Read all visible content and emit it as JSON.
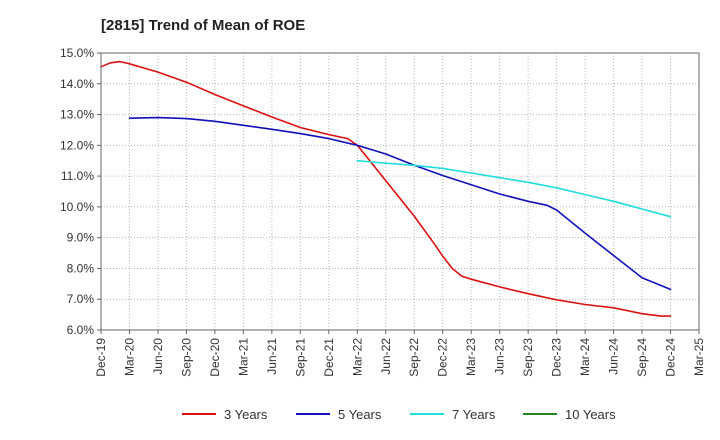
{
  "chart_data": {
    "type": "line",
    "title": "[2815]  Trend of Mean of ROE",
    "xlabel": "",
    "ylabel": "",
    "ylim": [
      6.0,
      15.0
    ],
    "y_ticks": [
      "6.0%",
      "7.0%",
      "8.0%",
      "9.0%",
      "10.0%",
      "11.0%",
      "12.0%",
      "13.0%",
      "14.0%",
      "15.0%"
    ],
    "x_ticks": [
      "Dec-19",
      "Mar-20",
      "Jun-20",
      "Sep-20",
      "Dec-20",
      "Mar-21",
      "Jun-21",
      "Sep-21",
      "Dec-21",
      "Mar-22",
      "Jun-22",
      "Sep-22",
      "Dec-22",
      "Mar-23",
      "Jun-23",
      "Sep-23",
      "Dec-23",
      "Mar-24",
      "Jun-24",
      "Sep-24",
      "Dec-24",
      "Mar-25"
    ],
    "x_months": 63,
    "grid": true,
    "legend_position": "bottom",
    "series": [
      {
        "name": "3 Years",
        "color": "#dd1111",
        "points": [
          [
            0,
            14.55
          ],
          [
            1,
            14.68
          ],
          [
            2,
            14.72
          ],
          [
            3,
            14.65
          ],
          [
            6,
            14.38
          ],
          [
            9,
            14.05
          ],
          [
            12,
            13.65
          ],
          [
            15,
            13.28
          ],
          [
            18,
            12.92
          ],
          [
            21,
            12.58
          ],
          [
            24,
            12.35
          ],
          [
            26,
            12.22
          ],
          [
            27,
            12.0
          ],
          [
            28,
            11.62
          ],
          [
            30,
            10.85
          ],
          [
            33,
            9.7
          ],
          [
            35,
            8.85
          ],
          [
            36,
            8.4
          ],
          [
            37,
            8.0
          ],
          [
            38,
            7.75
          ],
          [
            39,
            7.65
          ],
          [
            42,
            7.4
          ],
          [
            45,
            7.18
          ],
          [
            48,
            6.98
          ],
          [
            51,
            6.83
          ],
          [
            54,
            6.72
          ],
          [
            57,
            6.53
          ],
          [
            59,
            6.45
          ],
          [
            60,
            6.45
          ]
        ]
      },
      {
        "name": "5 Years",
        "color": "#1111bb",
        "points": [
          [
            3,
            12.88
          ],
          [
            6,
            12.9
          ],
          [
            9,
            12.87
          ],
          [
            12,
            12.78
          ],
          [
            15,
            12.65
          ],
          [
            18,
            12.52
          ],
          [
            21,
            12.38
          ],
          [
            24,
            12.22
          ],
          [
            27,
            12.0
          ],
          [
            30,
            11.72
          ],
          [
            33,
            11.35
          ],
          [
            36,
            11.02
          ],
          [
            39,
            10.72
          ],
          [
            42,
            10.42
          ],
          [
            45,
            10.18
          ],
          [
            47,
            10.05
          ],
          [
            48,
            9.9
          ],
          [
            49,
            9.65
          ],
          [
            51,
            9.15
          ],
          [
            54,
            8.42
          ],
          [
            57,
            7.7
          ],
          [
            60,
            7.32
          ]
        ]
      },
      {
        "name": "7 Years",
        "color": "#22dddd",
        "points": [
          [
            27,
            11.5
          ],
          [
            30,
            11.42
          ],
          [
            33,
            11.35
          ],
          [
            36,
            11.25
          ],
          [
            39,
            11.1
          ],
          [
            42,
            10.95
          ],
          [
            45,
            10.8
          ],
          [
            48,
            10.62
          ],
          [
            51,
            10.4
          ],
          [
            54,
            10.18
          ],
          [
            57,
            9.93
          ],
          [
            60,
            9.68
          ]
        ]
      },
      {
        "name": "10 Years",
        "color": "#228822",
        "points": []
      }
    ]
  }
}
